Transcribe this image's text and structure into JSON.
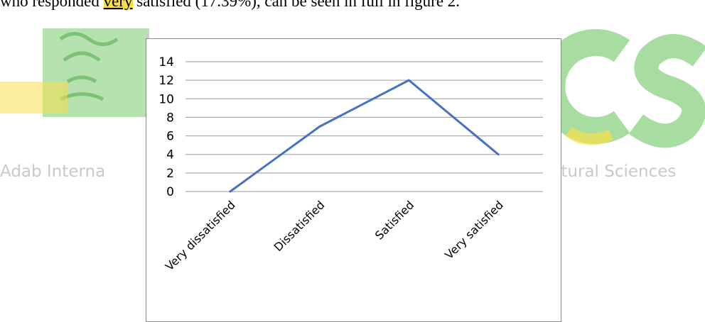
{
  "page": {
    "intro_prefix": "who responded ",
    "intro_highlight": "very",
    "intro_suffix": " satisfied (17.39%), can be seen in full in figure 2.",
    "watermark_left": "Adab Interna",
    "watermark_right": "ltural Sciences"
  },
  "colors": {
    "line": "#4472c4",
    "grid": "#9a9a9a",
    "watermark_green": "#a8dda1",
    "watermark_yellow": "#f6df4a",
    "watermark_text": "#c9c9c9"
  },
  "chart_data": {
    "type": "line",
    "categories": [
      "Very dissatisfied",
      "Dissatisfied",
      "Satisfied",
      "Very satisfied"
    ],
    "series": [
      {
        "values": [
          0,
          7,
          12,
          4
        ]
      }
    ],
    "yticks": [
      "0",
      "2",
      "4",
      "6",
      "8",
      "10",
      "12",
      "14"
    ],
    "ylim": [
      0,
      14
    ],
    "grid": true,
    "legend": "none",
    "title": "",
    "xlabel": "",
    "ylabel": ""
  }
}
